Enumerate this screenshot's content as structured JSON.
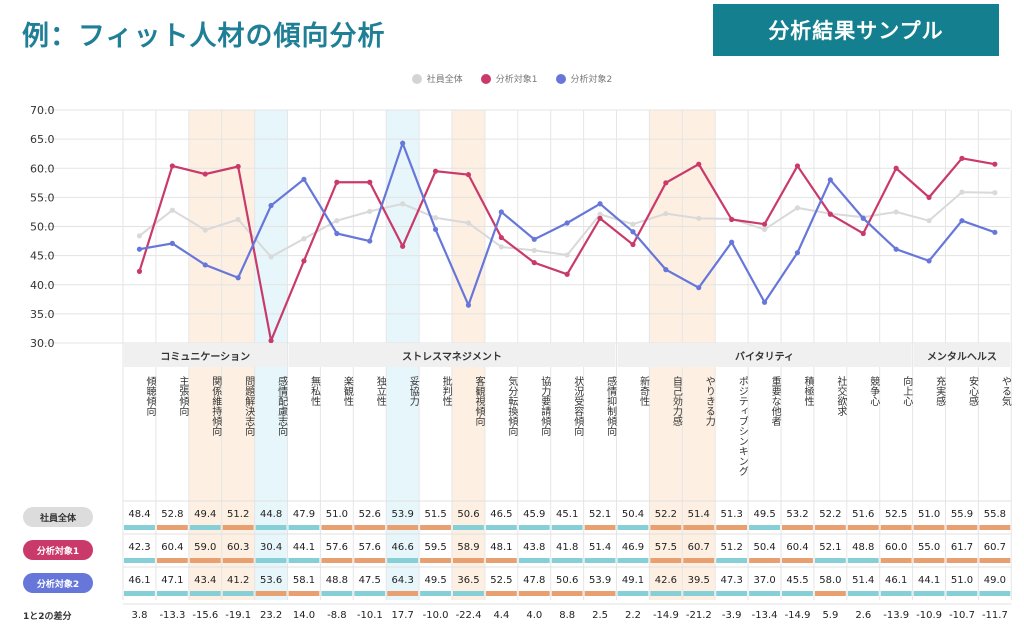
{
  "header": {
    "title": "例：フィット人材の傾向分析",
    "sample_label": "分析結果サンプル"
  },
  "legend": [
    {
      "name": "社員全体",
      "color": "#d4d4d4"
    },
    {
      "name": "分析対象1",
      "color": "#c93a6b"
    },
    {
      "name": "分析対象2",
      "color": "#6677d9"
    }
  ],
  "chart_data": {
    "type": "line",
    "ylim": [
      30,
      70
    ],
    "yticks": [
      "30.0",
      "35.0",
      "40.0",
      "45.0",
      "50.0",
      "55.0",
      "60.0",
      "65.0",
      "70.0"
    ],
    "categories": [
      "傾聴傾向",
      "主張傾向",
      "関係維持傾向",
      "問題解決志向",
      "感情配慮志向",
      "無私性",
      "楽観性",
      "独立性",
      "妥協力",
      "批判性",
      "客観視傾向",
      "気分転換傾向",
      "協力要請傾向",
      "状況受容傾向",
      "感情抑制傾向",
      "新奇性",
      "自己効力感",
      "やりきる力",
      "ポジティブシンキング",
      "重要な他者",
      "積極性",
      "社交欲求",
      "競争心",
      "向上心",
      "充実感",
      "安心感",
      "やる気"
    ],
    "groups": [
      {
        "name": "コミュニケーション",
        "count": 5
      },
      {
        "name": "ストレスマネジメント",
        "count": 10
      },
      {
        "name": "バイタリティ",
        "count": 9
      },
      {
        "name": "メンタルヘルス",
        "count": 3
      }
    ],
    "highlight_orange": [
      2,
      3,
      10,
      16,
      17
    ],
    "highlight_blue": [
      4,
      8
    ],
    "series": [
      {
        "name": "社員全体",
        "color": "#d9d9d9",
        "values": [
          48.4,
          52.8,
          49.4,
          51.2,
          44.8,
          47.9,
          51.0,
          52.6,
          53.9,
          51.5,
          50.6,
          46.5,
          45.9,
          45.1,
          52.1,
          50.4,
          52.2,
          51.4,
          51.3,
          49.5,
          53.2,
          52.2,
          51.6,
          52.5,
          51.0,
          55.9,
          55.8
        ]
      },
      {
        "name": "分析対象1",
        "color": "#c93a6b",
        "values": [
          42.3,
          60.4,
          59.0,
          60.3,
          30.4,
          44.1,
          57.6,
          57.6,
          46.6,
          59.5,
          58.9,
          48.1,
          43.8,
          41.8,
          51.4,
          46.9,
          57.5,
          60.7,
          51.2,
          50.4,
          60.4,
          52.1,
          48.8,
          60.0,
          55.0,
          61.7,
          60.7
        ]
      },
      {
        "name": "分析対象2",
        "color": "#6677d9",
        "values": [
          46.1,
          47.1,
          43.4,
          41.2,
          53.6,
          58.1,
          48.8,
          47.5,
          64.3,
          49.5,
          36.5,
          52.5,
          47.8,
          50.6,
          53.9,
          49.1,
          42.6,
          39.5,
          47.3,
          37.0,
          45.5,
          58.0,
          51.4,
          46.1,
          44.1,
          51.0,
          49.0
        ]
      }
    ],
    "diff_label": "1と2の差分",
    "diff": [
      "3.8",
      "-13.3",
      "-15.6",
      "-19.1",
      "23.2",
      "14.0",
      "-8.8",
      "-10.1",
      "17.7",
      "-10.0",
      "-22.4",
      "4.4",
      "4.0",
      "8.8",
      "2.5",
      "2.2",
      "-14.9",
      "-21.2",
      "-3.9",
      "-13.4",
      "-14.9",
      "5.9",
      "2.6",
      "-13.9",
      "-10.9",
      "-10.7",
      "-11.7"
    ]
  }
}
